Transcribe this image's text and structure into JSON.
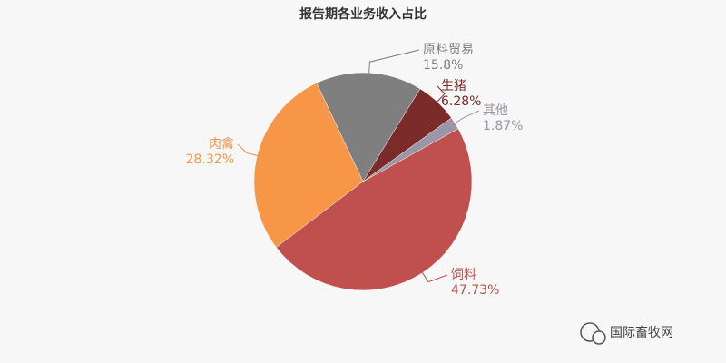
{
  "chart_data": {
    "type": "pie",
    "title": "报告期各业务收入占比",
    "categories": [
      "饲料",
      "肉禽",
      "原料贸易",
      "生猪",
      "其他"
    ],
    "values": [
      47.73,
      28.32,
      15.8,
      6.28,
      1.87
    ],
    "value_labels": [
      "47.73%",
      "28.32%",
      "15.8%",
      "6.28%",
      "1.87%"
    ],
    "colors": [
      "#c0504d",
      "#f79646",
      "#7f7f7f",
      "#7b2c2a",
      "#9b95a8"
    ]
  },
  "watermark": "国际畜牧网"
}
